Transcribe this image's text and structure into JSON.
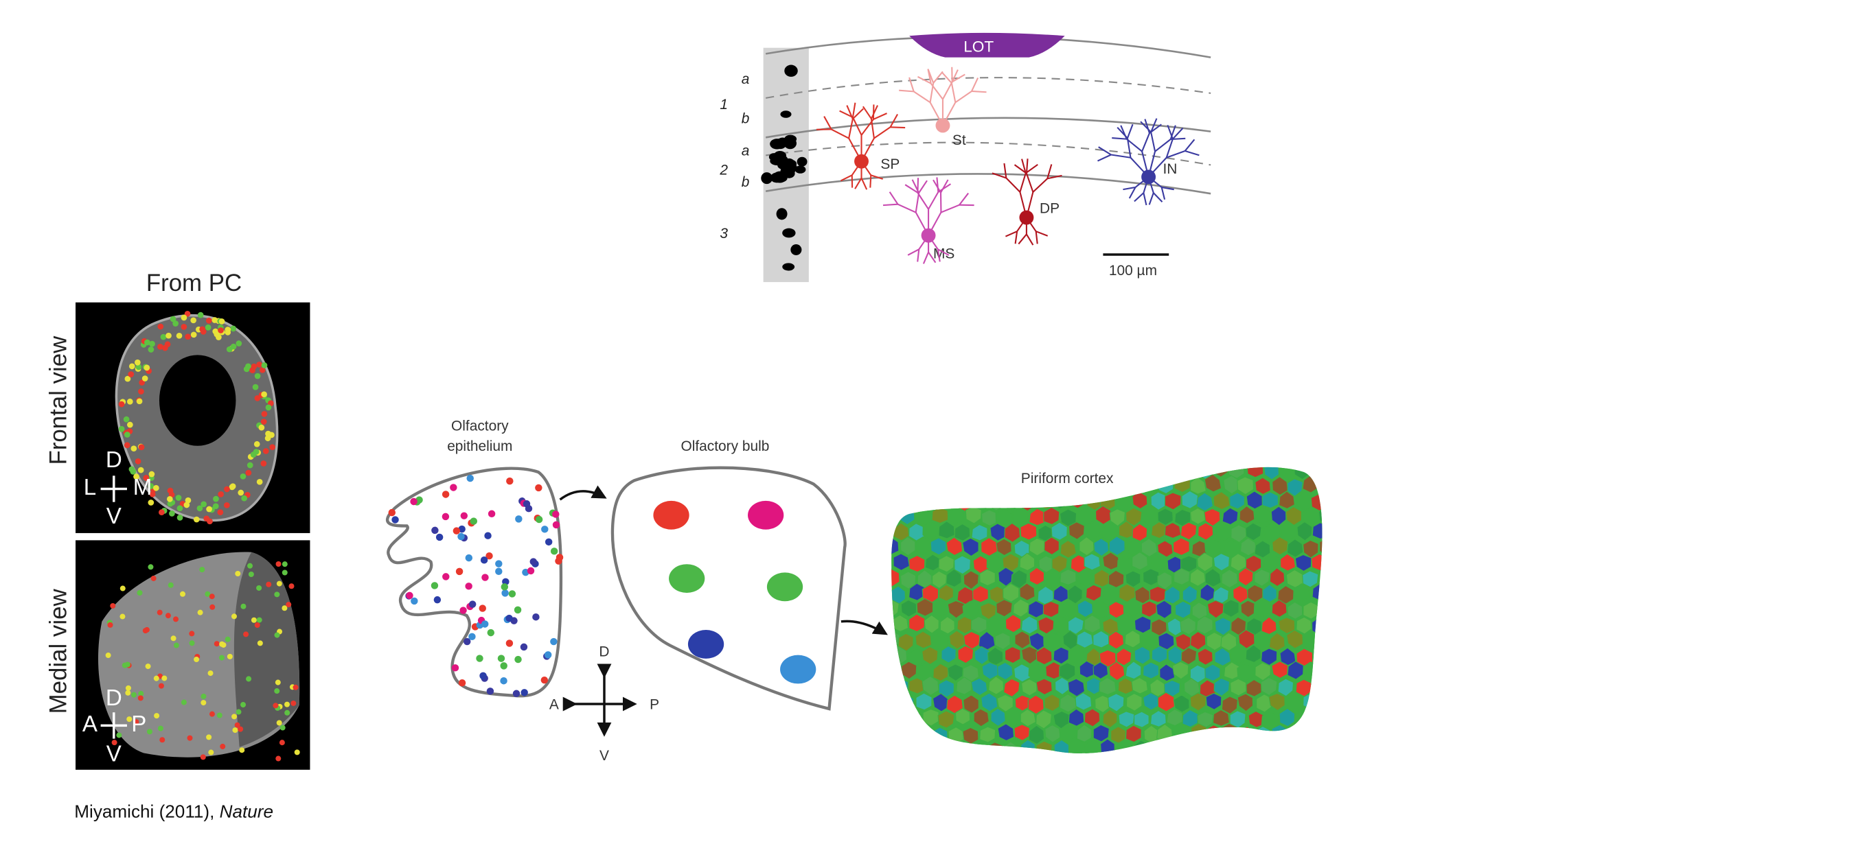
{
  "layers_diagram": {
    "tract_label": "LOT",
    "sublayer_labels": [
      "a",
      "b",
      "a",
      "b"
    ],
    "layer_labels": [
      "1",
      "2",
      "3"
    ],
    "cell_labels": [
      "SP",
      "St",
      "MS",
      "DP",
      "IN"
    ],
    "scale_bar": "100 µm"
  },
  "tracing_panel": {
    "title": "From PC",
    "views": [
      {
        "label": "Frontal view",
        "axes": [
          "D",
          "L",
          "M",
          "V"
        ]
      },
      {
        "label": "Medial view",
        "axes": [
          "D",
          "A",
          "P",
          "V"
        ]
      }
    ]
  },
  "schematic": {
    "epithelium": [
      "Olfactory",
      "epithelium"
    ],
    "bulb": "Olfactory bulb",
    "cortex": "Piriform cortex",
    "compass": [
      "D",
      "A",
      "P",
      "V"
    ]
  },
  "citation": {
    "author": "Miyamichi (2011), ",
    "journal": "Nature"
  }
}
